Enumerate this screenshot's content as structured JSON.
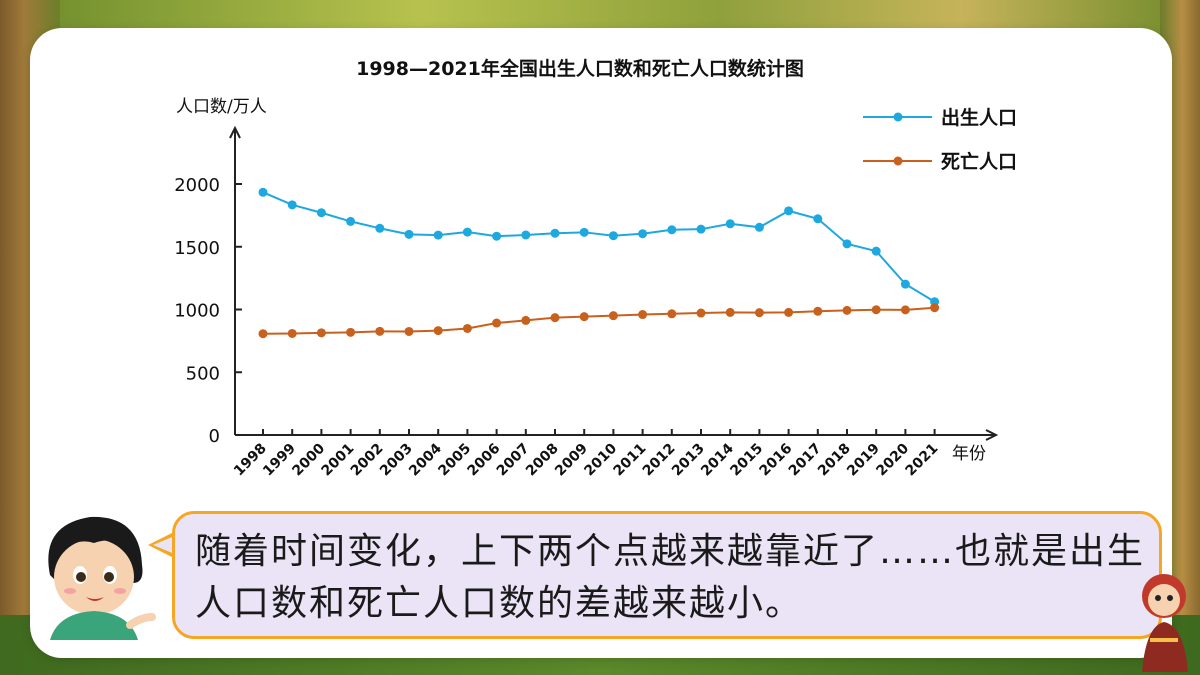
{
  "chart_data": {
    "type": "line",
    "title": "1998—2021年全国出生人口数和死亡人口数统计图",
    "ylabel": "人口数/万人",
    "xlabel": "年份",
    "ylim": [
      0,
      2000
    ],
    "yticks": [
      "0",
      "500",
      "1000",
      "1500",
      "2000"
    ],
    "categories": [
      "1998",
      "1999",
      "2000",
      "2001",
      "2002",
      "2003",
      "2004",
      "2005",
      "2006",
      "2007",
      "2008",
      "2009",
      "2010",
      "2011",
      "2012",
      "2013",
      "2014",
      "2015",
      "2016",
      "2017",
      "2018",
      "2019",
      "2020",
      "2021"
    ],
    "series": [
      {
        "name": "出生人口",
        "color": "#1ea8e0",
        "values": [
          1934,
          1834,
          1771,
          1702,
          1647,
          1599,
          1593,
          1617,
          1584,
          1594,
          1608,
          1615,
          1588,
          1604,
          1635,
          1640,
          1683,
          1655,
          1786,
          1723,
          1523,
          1465,
          1202,
          1062
        ]
      },
      {
        "name": "死亡人口",
        "color": "#c8601e",
        "values": [
          807,
          809,
          814,
          818,
          826,
          825,
          832,
          849,
          892,
          913,
          935,
          943,
          951,
          960,
          966,
          972,
          977,
          975,
          977,
          986,
          993,
          998,
          997,
          1014
        ]
      }
    ],
    "grid": false,
    "legend_position": "top-right"
  },
  "speech": {
    "text": "随着时间变化，上下两个点越来越靠近了……也就是出生人口数和死亡人口数的差越来越小。"
  },
  "colors": {
    "bubble_border": "#f5a623",
    "bubble_fill": "#eae4f6"
  }
}
